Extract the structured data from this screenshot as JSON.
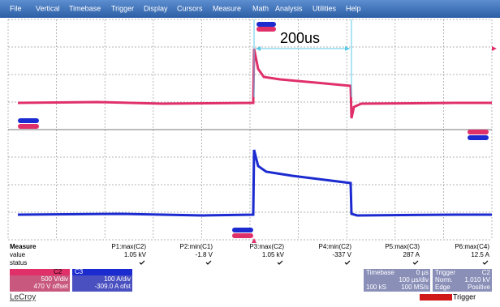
{
  "menu": [
    "File",
    "Vertical",
    "Timebase",
    "Trigger",
    "Display",
    "Cursors",
    "Measure",
    "Math",
    "Analysis",
    "Utilities",
    "Help"
  ],
  "annotation": "200us",
  "measure": {
    "header": "Measure",
    "row_labels": [
      "value",
      "status"
    ],
    "columns": [
      {
        "name": "P1:max(C2)",
        "value": "1.05 kV"
      },
      {
        "name": "P2:min(C1)",
        "value": "-1.8 V"
      },
      {
        "name": "P3:max(C2)",
        "value": "1.05 kV"
      },
      {
        "name": "P4:min(C2)",
        "value": "-337 V"
      },
      {
        "name": "P5:max(C3)",
        "value": "287 A"
      },
      {
        "name": "P6:max(C4)",
        "value": "12.5 A"
      }
    ]
  },
  "channels": [
    {
      "name": "C2",
      "scale": "500 V/div",
      "offset": "470 V offset"
    },
    {
      "name": "C3",
      "scale": "100 A/div",
      "offset": "-309.0 A ofst"
    }
  ],
  "timebase": {
    "title": "Timebase",
    "delay": "0 µs",
    "scale": "100 µs/div",
    "samples": "100 kS",
    "rate": "100 MS/s"
  },
  "trigger": {
    "title": "Trigger",
    "source": "C2",
    "mode": "Norm.",
    "level": "1.010 kV",
    "type": "Edge",
    "slope": "Positive"
  },
  "logo": "LeCroy",
  "trigger_label": "Trigger"
}
